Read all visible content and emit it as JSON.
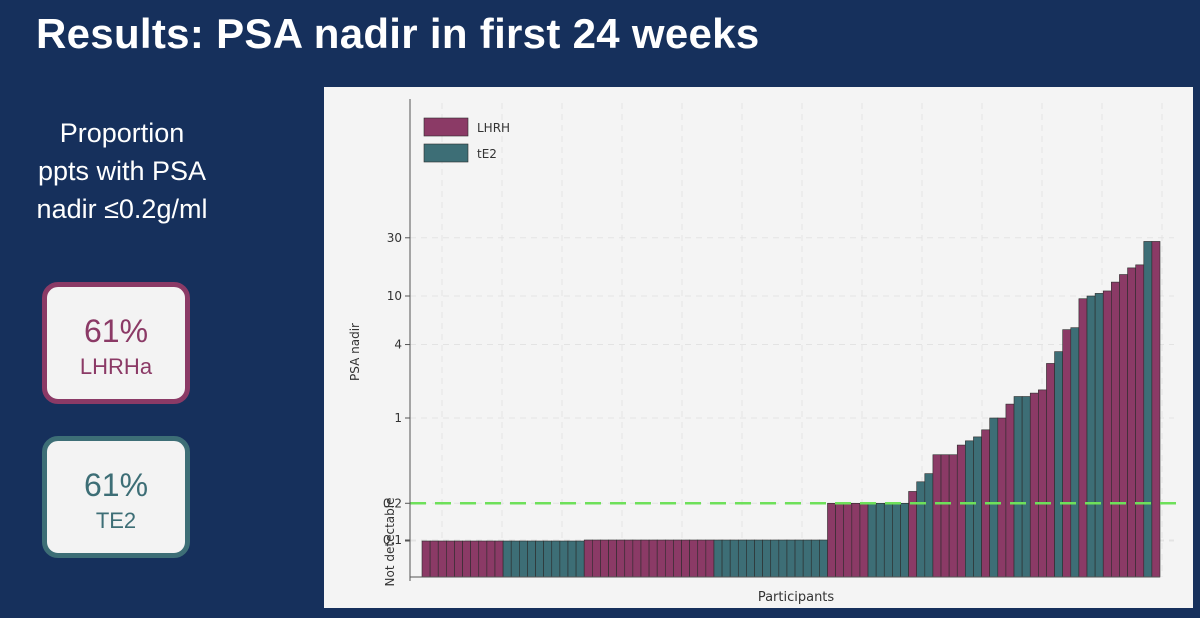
{
  "title": "Results: PSA nadir in first 24 weeks",
  "proportion": {
    "line1": "Proportion",
    "line2": "ppts with PSA",
    "line3": "nadir ≤0.2g/ml"
  },
  "stat_boxes": [
    {
      "percent": "61%",
      "label": "LHRHa",
      "color": "#8b3a66"
    },
    {
      "percent": "61%",
      "label": "TE2",
      "color": "#3d6e76"
    }
  ],
  "chart_data": {
    "type": "bar",
    "xlabel": "Participants",
    "ylabel": "PSA nadir",
    "yscale": "log",
    "yticks": [
      "30",
      "10",
      "4",
      "1",
      "0.2",
      "0.1",
      "Not detectable"
    ],
    "legend": {
      "placement": "top-left"
    },
    "threshold": {
      "value": 0.2,
      "style": "dashed",
      "color": "#6ee05a"
    },
    "grid": true,
    "series": [
      {
        "name": "LHRH",
        "color": "#8b3a66"
      },
      {
        "name": "tE2",
        "color": "#3d6e76"
      }
    ],
    "bars": [
      {
        "series": "LHRH",
        "value": "Not detectable",
        "count": 10
      },
      {
        "series": "tE2",
        "value": "Not detectable",
        "count": 10
      },
      {
        "series": "LHRH",
        "value": 0.1,
        "count": 16
      },
      {
        "series": "tE2",
        "value": 0.1,
        "count": 14
      },
      {
        "series": "LHRH",
        "value": 0.2,
        "count": 5
      },
      {
        "series": "tE2",
        "value": 0.2,
        "count": 5
      },
      {
        "series": "LHRH",
        "value": 0.25
      },
      {
        "series": "tE2",
        "value": 0.3
      },
      {
        "series": "tE2",
        "value": 0.35
      },
      {
        "series": "LHRH",
        "value": 0.5
      },
      {
        "series": "LHRH",
        "value": 0.5
      },
      {
        "series": "LHRH",
        "value": 0.5
      },
      {
        "series": "LHRH",
        "value": 0.6
      },
      {
        "series": "tE2",
        "value": 0.65
      },
      {
        "series": "tE2",
        "value": 0.7
      },
      {
        "series": "LHRH",
        "value": 0.8
      },
      {
        "series": "tE2",
        "value": 1.0
      },
      {
        "series": "LHRH",
        "value": 1.0
      },
      {
        "series": "LHRH",
        "value": 1.3
      },
      {
        "series": "tE2",
        "value": 1.5
      },
      {
        "series": "tE2",
        "value": 1.5
      },
      {
        "series": "LHRH",
        "value": 1.6
      },
      {
        "series": "LHRH",
        "value": 1.7
      },
      {
        "series": "LHRH",
        "value": 2.8
      },
      {
        "series": "tE2",
        "value": 3.5
      },
      {
        "series": "LHRH",
        "value": 5.3
      },
      {
        "series": "tE2",
        "value": 5.5
      },
      {
        "series": "LHRH",
        "value": 9.5
      },
      {
        "series": "tE2",
        "value": 10
      },
      {
        "series": "tE2",
        "value": 10.5
      },
      {
        "series": "LHRH",
        "value": 11
      },
      {
        "series": "LHRH",
        "value": 13
      },
      {
        "series": "LHRH",
        "value": 15
      },
      {
        "series": "LHRH",
        "value": 17
      },
      {
        "series": "LHRH",
        "value": 18
      },
      {
        "series": "tE2",
        "value": 28
      },
      {
        "series": "LHRH",
        "value": 28
      }
    ]
  }
}
